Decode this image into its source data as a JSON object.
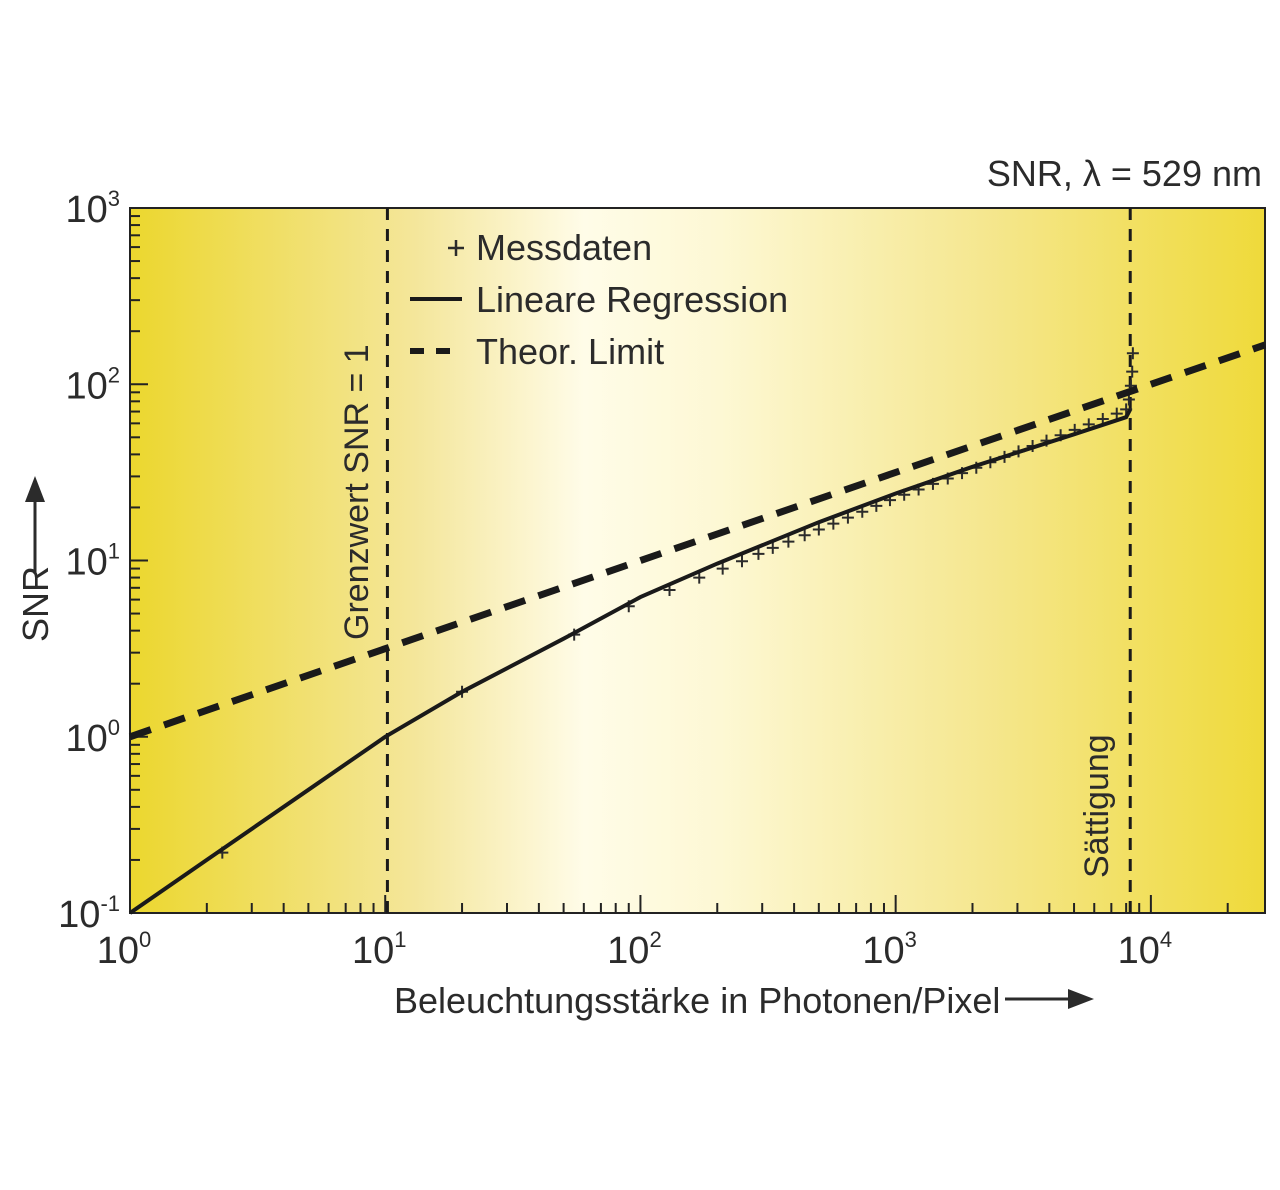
{
  "chart_data": {
    "type": "line",
    "title": "SNR, λ = 529 nm",
    "xlabel": "Beleuchtungsstärke in Photonen/Pixel",
    "ylabel": "SNR",
    "xscale": "log",
    "yscale": "log",
    "xlim": [
      1,
      28000
    ],
    "ylim": [
      0.1,
      1000
    ],
    "grid": false,
    "legend_position": "top-left",
    "background": "yellow-to-white horizontal gradient",
    "x_ticks": [
      {
        "base": "10",
        "exp": "0",
        "value": 1
      },
      {
        "base": "10",
        "exp": "1",
        "value": 10
      },
      {
        "base": "10",
        "exp": "2",
        "value": 100
      },
      {
        "base": "10",
        "exp": "3",
        "value": 1000
      },
      {
        "base": "10",
        "exp": "4",
        "value": 10000
      }
    ],
    "y_ticks": [
      {
        "base": "10",
        "exp": "-1",
        "value": 0.1
      },
      {
        "base": "10",
        "exp": "0",
        "value": 1
      },
      {
        "base": "10",
        "exp": "1",
        "value": 10
      },
      {
        "base": "10",
        "exp": "2",
        "value": 100
      },
      {
        "base": "10",
        "exp": "3",
        "value": 1000
      }
    ],
    "series": [
      {
        "name": "Messdaten",
        "style": "plus-markers",
        "color": "#2b2b2b",
        "points": [
          [
            2.3,
            0.22
          ],
          [
            20,
            1.8
          ],
          [
            55,
            3.8
          ],
          [
            90,
            5.5
          ],
          [
            130,
            6.8
          ],
          [
            170,
            8.0
          ],
          [
            210,
            9.0
          ],
          [
            250,
            9.9
          ],
          [
            290,
            10.9
          ],
          [
            330,
            11.8
          ],
          [
            380,
            12.8
          ],
          [
            440,
            13.9
          ],
          [
            500,
            15.0
          ],
          [
            570,
            16.2
          ],
          [
            650,
            17.5
          ],
          [
            740,
            18.9
          ],
          [
            840,
            20.4
          ],
          [
            950,
            22.0
          ],
          [
            1080,
            23.6
          ],
          [
            1230,
            25.3
          ],
          [
            1400,
            27.2
          ],
          [
            1600,
            29.2
          ],
          [
            1820,
            31.3
          ],
          [
            2070,
            33.6
          ],
          [
            2350,
            36.1
          ],
          [
            2670,
            38.7
          ],
          [
            3030,
            41.6
          ],
          [
            3440,
            44.6
          ],
          [
            3900,
            47.9
          ],
          [
            4430,
            51.4
          ],
          [
            5030,
            55.1
          ],
          [
            5710,
            59.2
          ],
          [
            6480,
            63.5
          ],
          [
            7350,
            68.1
          ],
          [
            8000,
            72.0
          ],
          [
            8200,
            82.0
          ],
          [
            8350,
            98.0
          ],
          [
            8450,
            118.0
          ],
          [
            8500,
            150.0
          ]
        ]
      },
      {
        "name": "Lineare Regression",
        "style": "solid",
        "color": "#1a1a1a",
        "points": [
          [
            1,
            0.1
          ],
          [
            2,
            0.2
          ],
          [
            5,
            0.5
          ],
          [
            10,
            1.0
          ],
          [
            20,
            1.8
          ],
          [
            50,
            3.6
          ],
          [
            100,
            6.2
          ],
          [
            200,
            9.6
          ],
          [
            500,
            16.5
          ],
          [
            1000,
            24.0
          ],
          [
            2000,
            34.0
          ],
          [
            5000,
            52.0
          ],
          [
            8000,
            65.0
          ],
          [
            8300,
            72.0
          ]
        ]
      },
      {
        "name": "Theor. Limit",
        "style": "dashed",
        "color": "#1a1a1a",
        "points": [
          [
            1,
            1.0
          ],
          [
            28000,
            167.3
          ]
        ]
      }
    ],
    "reference_lines": [
      {
        "orientation": "vertical",
        "x": 10.2,
        "style": "dashed",
        "label": "Grenzwert SNR = 1"
      },
      {
        "orientation": "vertical",
        "x": 8300,
        "style": "dashed",
        "label": "Sättigung"
      }
    ]
  },
  "icons": {
    "x_axis_arrow": "arrow-right-icon",
    "y_axis_arrow": "arrow-up-icon"
  }
}
